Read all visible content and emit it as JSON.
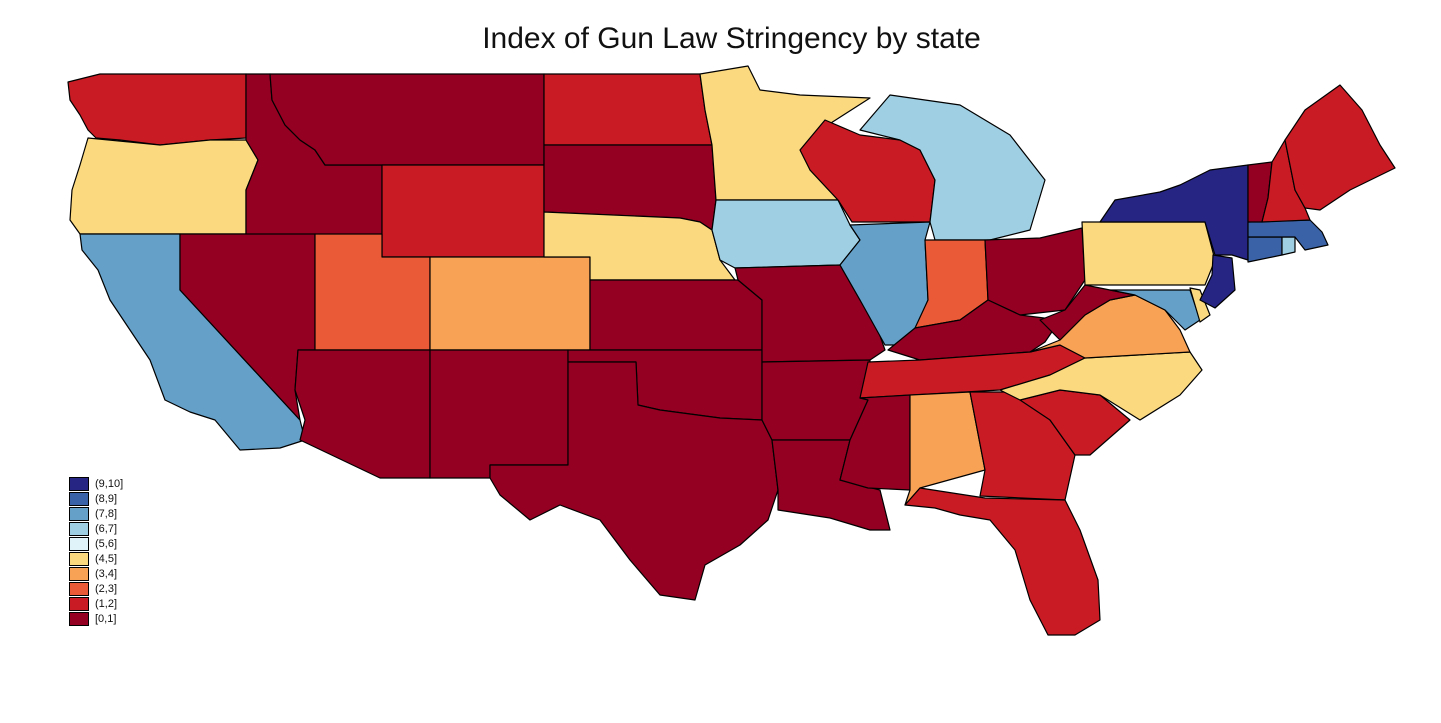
{
  "title": "Index of Gun Law Stringency by state",
  "colors": {
    "9-10": "#262583",
    "8-9": "#3a62a6",
    "7-8": "#64a0c8",
    "6-7": "#9ecfe3",
    "5-6": "#e0f3f8",
    "4-5": "#fbd97f",
    "3-4": "#f8a255",
    "2-3": "#eb5a36",
    "1-2": "#c81b23",
    "0-1": "#930021"
  },
  "legend": [
    {
      "label": "(9,10]",
      "key": "9-10"
    },
    {
      "label": "(8,9]",
      "key": "8-9"
    },
    {
      "label": "(7,8]",
      "key": "7-8"
    },
    {
      "label": "(6,7]",
      "key": "6-7"
    },
    {
      "label": "(5,6]",
      "key": "5-6"
    },
    {
      "label": "(4,5]",
      "key": "4-5"
    },
    {
      "label": "(3,4]",
      "key": "3-4"
    },
    {
      "label": "(2,3]",
      "key": "2-3"
    },
    {
      "label": "(1,2]",
      "key": "1-2"
    },
    {
      "label": "[0,1]",
      "key": "0-1"
    }
  ],
  "states": {
    "WA": "1-2",
    "OR": "4-5",
    "CA": "7-8",
    "ID": "0-1",
    "NV": "0-1",
    "MT": "0-1",
    "WY": "1-2",
    "UT": "2-3",
    "AZ": "0-1",
    "CO": "3-4",
    "NM": "0-1",
    "ND": "1-2",
    "SD": "0-1",
    "NE": "4-5",
    "KS": "0-1",
    "OK": "0-1",
    "TX": "0-1",
    "MN": "4-5",
    "IA": "6-7",
    "MO": "0-1",
    "AR": "0-1",
    "LA": "0-1",
    "WI": "1-2",
    "IL": "7-8",
    "MI": "6-7",
    "IN": "2-3",
    "OH": "0-1",
    "KY": "0-1",
    "TN": "1-2",
    "MS": "0-1",
    "AL": "3-4",
    "GA": "1-2",
    "FL": "1-2",
    "SC": "1-2",
    "NC": "4-5",
    "VA": "3-4",
    "WV": "0-1",
    "PA": "4-5",
    "NY": "9-10",
    "NJ": "9-10",
    "DE": "4-5",
    "MD": "7-8",
    "CT": "8-9",
    "RI": "6-7",
    "MA": "8-9",
    "VT": "0-1",
    "NH": "1-2",
    "ME": "1-2"
  }
}
